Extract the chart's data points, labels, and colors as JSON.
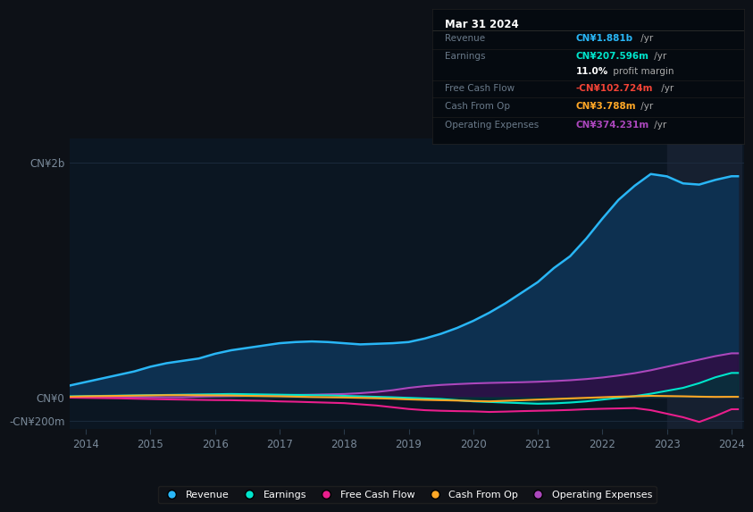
{
  "bg_color": "#0d1117",
  "plot_bg_color": "#0b1622",
  "grid_color": "#1e2d40",
  "years": [
    2013.75,
    2014,
    2014.25,
    2014.5,
    2014.75,
    2015,
    2015.25,
    2015.5,
    2015.75,
    2016,
    2016.25,
    2016.5,
    2016.75,
    2017,
    2017.25,
    2017.5,
    2017.75,
    2018,
    2018.25,
    2018.5,
    2018.75,
    2019,
    2019.25,
    2019.5,
    2019.75,
    2020,
    2020.25,
    2020.5,
    2020.75,
    2021,
    2021.25,
    2021.5,
    2021.75,
    2022,
    2022.25,
    2022.5,
    2022.75,
    2023,
    2023.25,
    2023.5,
    2023.75,
    2024,
    2024.1
  ],
  "revenue": [
    100,
    130,
    160,
    190,
    220,
    260,
    290,
    310,
    330,
    370,
    400,
    420,
    440,
    460,
    470,
    475,
    470,
    460,
    450,
    455,
    460,
    470,
    500,
    540,
    590,
    650,
    720,
    800,
    890,
    980,
    1100,
    1200,
    1350,
    1520,
    1680,
    1800,
    1900,
    1880,
    1820,
    1810,
    1850,
    1881,
    1881
  ],
  "earnings": [
    8,
    10,
    12,
    14,
    16,
    18,
    20,
    22,
    24,
    26,
    28,
    26,
    24,
    22,
    20,
    18,
    16,
    12,
    8,
    4,
    0,
    -5,
    -10,
    -15,
    -25,
    -35,
    -40,
    -45,
    -50,
    -55,
    -52,
    -45,
    -35,
    -20,
    -5,
    10,
    30,
    55,
    80,
    120,
    170,
    207,
    207
  ],
  "fcf": [
    -3,
    -5,
    -7,
    -9,
    -12,
    -15,
    -18,
    -20,
    -22,
    -24,
    -25,
    -28,
    -30,
    -35,
    -38,
    -42,
    -46,
    -50,
    -60,
    -70,
    -85,
    -100,
    -110,
    -115,
    -118,
    -120,
    -125,
    -122,
    -118,
    -115,
    -112,
    -108,
    -102,
    -98,
    -95,
    -92,
    -110,
    -140,
    -170,
    -210,
    -160,
    -102,
    -102
  ],
  "cash_from_op": [
    5,
    8,
    10,
    12,
    14,
    16,
    18,
    18,
    17,
    16,
    15,
    12,
    10,
    8,
    5,
    2,
    0,
    -2,
    -5,
    -8,
    -12,
    -18,
    -22,
    -25,
    -28,
    -32,
    -35,
    -30,
    -25,
    -20,
    -15,
    -10,
    -5,
    0,
    5,
    8,
    12,
    10,
    8,
    5,
    3,
    3.788,
    3.788
  ],
  "op_expenses": [
    0,
    0,
    0,
    0,
    0,
    0,
    0,
    0,
    5,
    8,
    10,
    12,
    15,
    18,
    20,
    22,
    25,
    28,
    35,
    45,
    60,
    80,
    95,
    105,
    112,
    118,
    122,
    125,
    128,
    132,
    138,
    145,
    155,
    168,
    185,
    205,
    230,
    260,
    290,
    320,
    350,
    374,
    374
  ],
  "revenue_color": "#29b6f6",
  "revenue_fill": "#0d3050",
  "earnings_color": "#00e5cc",
  "earnings_fill": "#003838",
  "fcf_color": "#e91e8c",
  "cash_from_op_color": "#ffa726",
  "op_expenses_color": "#ab47bc",
  "op_expenses_fill": "#2d1045",
  "ylim_min": -270,
  "ylim_max": 2200,
  "yticks": [
    -200,
    0,
    2000
  ],
  "ytick_labels": [
    "-CN¥200m",
    "CN¥0",
    "CN¥2b"
  ],
  "xticks": [
    2014,
    2015,
    2016,
    2017,
    2018,
    2019,
    2020,
    2021,
    2022,
    2023,
    2024
  ],
  "info_box": {
    "title": "Mar 31 2024",
    "rows": [
      {
        "label": "Revenue",
        "value": "CN¥1.881b",
        "suffix": " /yr",
        "value_color": "#29b6f6"
      },
      {
        "label": "Earnings",
        "value": "CN¥207.596m",
        "suffix": " /yr",
        "value_color": "#00e5cc"
      },
      {
        "label": "",
        "value": "11.0%",
        "suffix": " profit margin",
        "value_color": "#ffffff"
      },
      {
        "label": "Free Cash Flow",
        "value": "-CN¥102.724m",
        "suffix": " /yr",
        "value_color": "#f44336"
      },
      {
        "label": "Cash From Op",
        "value": "CN¥3.788m",
        "suffix": " /yr",
        "value_color": "#ffa726"
      },
      {
        "label": "Operating Expenses",
        "value": "CN¥374.231m",
        "suffix": " /yr",
        "value_color": "#ab47bc"
      }
    ]
  },
  "legend": [
    {
      "label": "Revenue",
      "color": "#29b6f6"
    },
    {
      "label": "Earnings",
      "color": "#00e5cc"
    },
    {
      "label": "Free Cash Flow",
      "color": "#e91e8c"
    },
    {
      "label": "Cash From Op",
      "color": "#ffa726"
    },
    {
      "label": "Operating Expenses",
      "color": "#ab47bc"
    }
  ],
  "highlight_x_start": 2023.0,
  "highlight_x_end": 2024.15
}
